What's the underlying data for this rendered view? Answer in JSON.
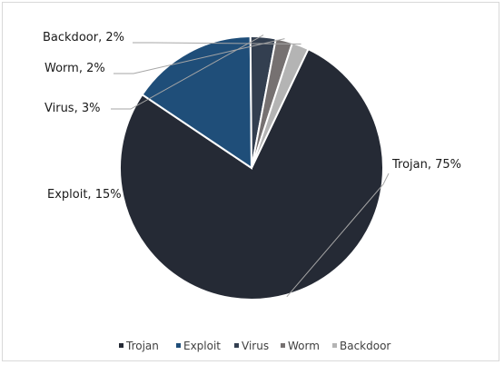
{
  "chart_data": {
    "type": "pie",
    "title": "",
    "categories": [
      "Trojan",
      "Exploit",
      "Virus",
      "Worm",
      "Backdoor"
    ],
    "values": [
      75,
      15,
      3,
      2,
      2
    ],
    "data_labels": [
      "Trojan, 75%",
      "Exploit, 15%",
      "Virus, 3%",
      "Worm, 2%",
      "Backdoor, 2%"
    ],
    "colors": [
      "#252a35",
      "#1f4e79",
      "#333f50",
      "#767171",
      "#b4b4b4"
    ],
    "legend_position": "bottom"
  }
}
